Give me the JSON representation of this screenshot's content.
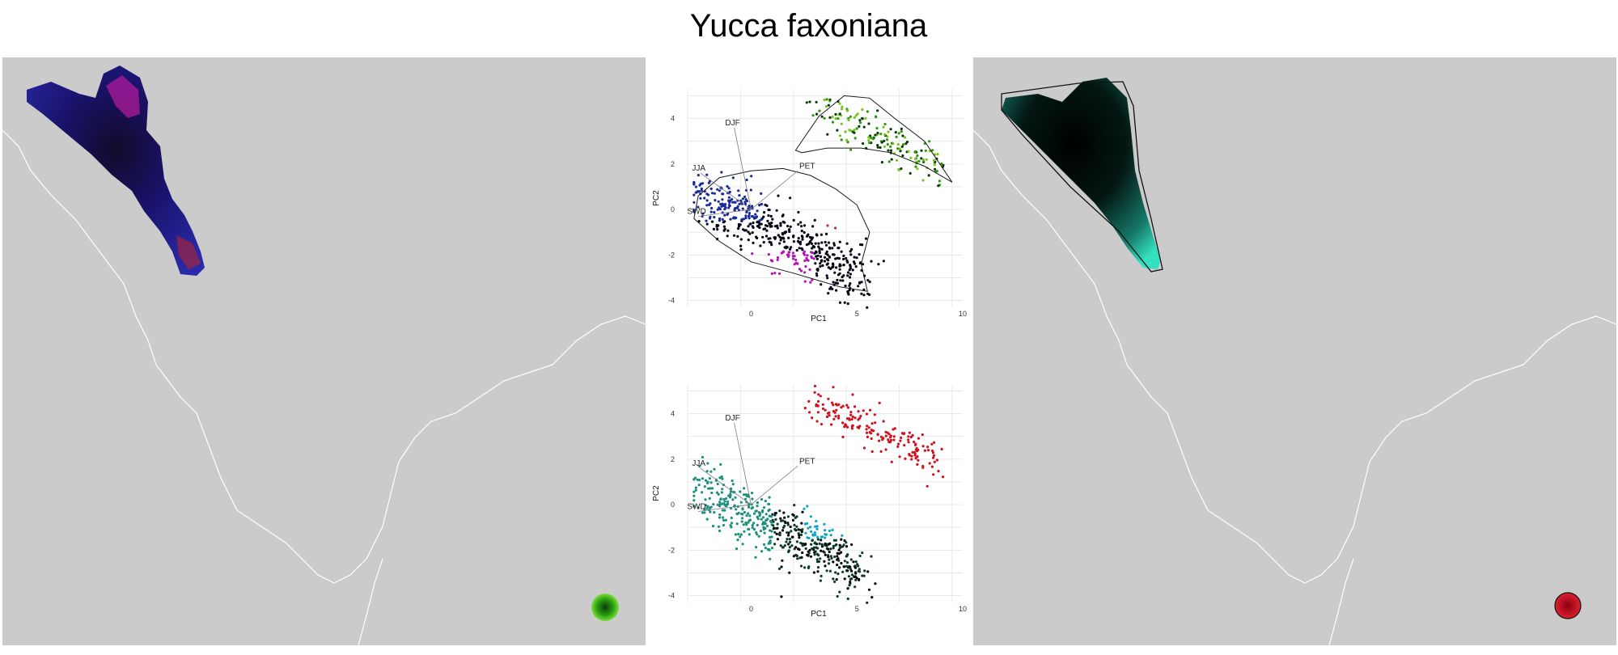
{
  "title": "Yucca faxoniana",
  "chart_data": [
    {
      "type": "scatter",
      "panel": "pca-biplot-range-colored",
      "xlabel": "PC1",
      "ylabel": "PC2",
      "xlim": [
        -3,
        10
      ],
      "ylim": [
        -4.3,
        5.3
      ],
      "xticks": [
        0,
        5,
        10
      ],
      "yticks": [
        -4,
        -2,
        0,
        2,
        4
      ],
      "grid": true,
      "hulls": true,
      "series": [
        {
          "group": "main-range",
          "hull": [
            [
              -2.5,
              0.6
            ],
            [
              -1.5,
              1.4
            ],
            [
              0,
              1.7
            ],
            [
              1.5,
              1.8
            ],
            [
              2.8,
              1.5
            ],
            [
              4,
              0.9
            ],
            [
              5,
              0.2
            ],
            [
              5.6,
              -1
            ],
            [
              5.2,
              -2.4
            ],
            [
              5.5,
              -3.6
            ],
            [
              4.2,
              -3.4
            ],
            [
              2,
              -2.8
            ],
            [
              0,
              -2.3
            ],
            [
              -1.5,
              -1.4
            ],
            [
              -2.7,
              -0.4
            ]
          ],
          "colors": [
            "#1a2a9a",
            "#000010",
            "#b313b8",
            "#c03020"
          ]
        },
        {
          "group": "southern-outlier",
          "hull": [
            [
              2.1,
              2.6
            ],
            [
              3.2,
              4.1
            ],
            [
              4.4,
              5.0
            ],
            [
              5.6,
              4.9
            ],
            [
              6.8,
              4.0
            ],
            [
              8.2,
              3.0
            ],
            [
              9.5,
              1.2
            ],
            [
              8.2,
              1.9
            ],
            [
              6.6,
              2.5
            ],
            [
              5.2,
              2.7
            ],
            [
              3.6,
              2.7
            ],
            [
              2.4,
              2.5
            ]
          ],
          "colors": [
            "#2a9a0a",
            "#77c51e",
            "#0a3a0a"
          ]
        }
      ],
      "arrows": [
        {
          "label": "DJF",
          "x": -0.8,
          "y": 3.6
        },
        {
          "label": "JJA",
          "x": -2.4,
          "y": 1.6
        },
        {
          "label": "PET",
          "x": 2.2,
          "y": 1.7
        },
        {
          "label": "SWD",
          "x": -2.5,
          "y": -0.3
        }
      ]
    },
    {
      "type": "scatter",
      "panel": "pca-biplot-density-colored",
      "xlabel": "PC1",
      "ylabel": "PC2",
      "xlim": [
        -3,
        10
      ],
      "ylim": [
        -4.3,
        5.3
      ],
      "xticks": [
        0,
        5,
        10
      ],
      "yticks": [
        -4,
        -2,
        0,
        2,
        4
      ],
      "grid": true,
      "hulls": false,
      "series": [
        {
          "group": "main-range",
          "colors": [
            "#1f8f7f",
            "#0aa5c0",
            "#0f3a30",
            "#000000"
          ]
        },
        {
          "group": "southern-outlier",
          "colors": [
            "#d0101c"
          ]
        }
      ],
      "arrows": [
        {
          "label": "DJF",
          "x": -0.8,
          "y": 3.6
        },
        {
          "label": "JJA",
          "x": -2.4,
          "y": 1.6
        },
        {
          "label": "PET",
          "x": 2.2,
          "y": 1.7
        },
        {
          "label": "SWD",
          "x": -2.5,
          "y": -0.3
        }
      ]
    }
  ],
  "colors": {
    "map_bg": "#cbcbcb",
    "border": "#ffffff",
    "range_blue": "#1a1a8a",
    "range_teal": "#2ad0b0",
    "outlier_green": "#3fbf2f",
    "outlier_red": "#d0101c"
  }
}
